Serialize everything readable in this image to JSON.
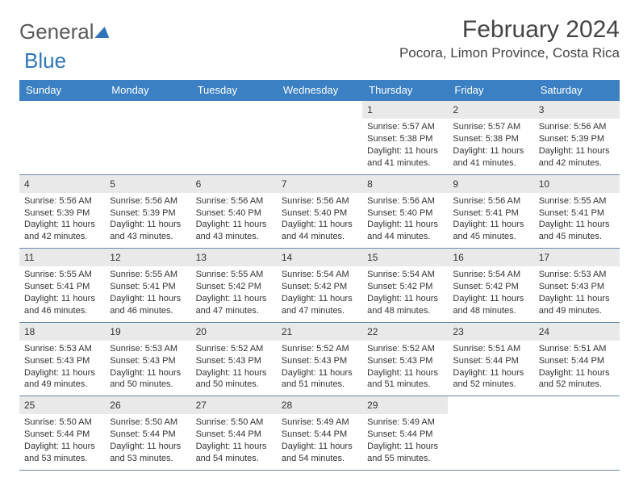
{
  "logo": {
    "word1": "General",
    "word2": "Blue"
  },
  "header": {
    "month": "February 2024",
    "location": "Pocora, Limon Province, Costa Rica"
  },
  "weekdays": [
    "Sunday",
    "Monday",
    "Tuesday",
    "Wednesday",
    "Thursday",
    "Friday",
    "Saturday"
  ],
  "colors": {
    "header_bg": "#3a80c3",
    "daynum_bg": "#e9e9e9",
    "rule": "#6b8aa8",
    "text": "#333333",
    "logo_gray": "#5a5a5a",
    "logo_blue": "#2f76b8"
  },
  "weeks": [
    [
      {
        "empty": true
      },
      {
        "empty": true
      },
      {
        "empty": true
      },
      {
        "empty": true
      },
      {
        "num": "1",
        "sunrise": "Sunrise: 5:57 AM",
        "sunset": "Sunset: 5:38 PM",
        "daylight": "Daylight: 11 hours and 41 minutes."
      },
      {
        "num": "2",
        "sunrise": "Sunrise: 5:57 AM",
        "sunset": "Sunset: 5:38 PM",
        "daylight": "Daylight: 11 hours and 41 minutes."
      },
      {
        "num": "3",
        "sunrise": "Sunrise: 5:56 AM",
        "sunset": "Sunset: 5:39 PM",
        "daylight": "Daylight: 11 hours and 42 minutes."
      }
    ],
    [
      {
        "num": "4",
        "sunrise": "Sunrise: 5:56 AM",
        "sunset": "Sunset: 5:39 PM",
        "daylight": "Daylight: 11 hours and 42 minutes."
      },
      {
        "num": "5",
        "sunrise": "Sunrise: 5:56 AM",
        "sunset": "Sunset: 5:39 PM",
        "daylight": "Daylight: 11 hours and 43 minutes."
      },
      {
        "num": "6",
        "sunrise": "Sunrise: 5:56 AM",
        "sunset": "Sunset: 5:40 PM",
        "daylight": "Daylight: 11 hours and 43 minutes."
      },
      {
        "num": "7",
        "sunrise": "Sunrise: 5:56 AM",
        "sunset": "Sunset: 5:40 PM",
        "daylight": "Daylight: 11 hours and 44 minutes."
      },
      {
        "num": "8",
        "sunrise": "Sunrise: 5:56 AM",
        "sunset": "Sunset: 5:40 PM",
        "daylight": "Daylight: 11 hours and 44 minutes."
      },
      {
        "num": "9",
        "sunrise": "Sunrise: 5:56 AM",
        "sunset": "Sunset: 5:41 PM",
        "daylight": "Daylight: 11 hours and 45 minutes."
      },
      {
        "num": "10",
        "sunrise": "Sunrise: 5:55 AM",
        "sunset": "Sunset: 5:41 PM",
        "daylight": "Daylight: 11 hours and 45 minutes."
      }
    ],
    [
      {
        "num": "11",
        "sunrise": "Sunrise: 5:55 AM",
        "sunset": "Sunset: 5:41 PM",
        "daylight": "Daylight: 11 hours and 46 minutes."
      },
      {
        "num": "12",
        "sunrise": "Sunrise: 5:55 AM",
        "sunset": "Sunset: 5:41 PM",
        "daylight": "Daylight: 11 hours and 46 minutes."
      },
      {
        "num": "13",
        "sunrise": "Sunrise: 5:55 AM",
        "sunset": "Sunset: 5:42 PM",
        "daylight": "Daylight: 11 hours and 47 minutes."
      },
      {
        "num": "14",
        "sunrise": "Sunrise: 5:54 AM",
        "sunset": "Sunset: 5:42 PM",
        "daylight": "Daylight: 11 hours and 47 minutes."
      },
      {
        "num": "15",
        "sunrise": "Sunrise: 5:54 AM",
        "sunset": "Sunset: 5:42 PM",
        "daylight": "Daylight: 11 hours and 48 minutes."
      },
      {
        "num": "16",
        "sunrise": "Sunrise: 5:54 AM",
        "sunset": "Sunset: 5:42 PM",
        "daylight": "Daylight: 11 hours and 48 minutes."
      },
      {
        "num": "17",
        "sunrise": "Sunrise: 5:53 AM",
        "sunset": "Sunset: 5:43 PM",
        "daylight": "Daylight: 11 hours and 49 minutes."
      }
    ],
    [
      {
        "num": "18",
        "sunrise": "Sunrise: 5:53 AM",
        "sunset": "Sunset: 5:43 PM",
        "daylight": "Daylight: 11 hours and 49 minutes."
      },
      {
        "num": "19",
        "sunrise": "Sunrise: 5:53 AM",
        "sunset": "Sunset: 5:43 PM",
        "daylight": "Daylight: 11 hours and 50 minutes."
      },
      {
        "num": "20",
        "sunrise": "Sunrise: 5:52 AM",
        "sunset": "Sunset: 5:43 PM",
        "daylight": "Daylight: 11 hours and 50 minutes."
      },
      {
        "num": "21",
        "sunrise": "Sunrise: 5:52 AM",
        "sunset": "Sunset: 5:43 PM",
        "daylight": "Daylight: 11 hours and 51 minutes."
      },
      {
        "num": "22",
        "sunrise": "Sunrise: 5:52 AM",
        "sunset": "Sunset: 5:43 PM",
        "daylight": "Daylight: 11 hours and 51 minutes."
      },
      {
        "num": "23",
        "sunrise": "Sunrise: 5:51 AM",
        "sunset": "Sunset: 5:44 PM",
        "daylight": "Daylight: 11 hours and 52 minutes."
      },
      {
        "num": "24",
        "sunrise": "Sunrise: 5:51 AM",
        "sunset": "Sunset: 5:44 PM",
        "daylight": "Daylight: 11 hours and 52 minutes."
      }
    ],
    [
      {
        "num": "25",
        "sunrise": "Sunrise: 5:50 AM",
        "sunset": "Sunset: 5:44 PM",
        "daylight": "Daylight: 11 hours and 53 minutes."
      },
      {
        "num": "26",
        "sunrise": "Sunrise: 5:50 AM",
        "sunset": "Sunset: 5:44 PM",
        "daylight": "Daylight: 11 hours and 53 minutes."
      },
      {
        "num": "27",
        "sunrise": "Sunrise: 5:50 AM",
        "sunset": "Sunset: 5:44 PM",
        "daylight": "Daylight: 11 hours and 54 minutes."
      },
      {
        "num": "28",
        "sunrise": "Sunrise: 5:49 AM",
        "sunset": "Sunset: 5:44 PM",
        "daylight": "Daylight: 11 hours and 54 minutes."
      },
      {
        "num": "29",
        "sunrise": "Sunrise: 5:49 AM",
        "sunset": "Sunset: 5:44 PM",
        "daylight": "Daylight: 11 hours and 55 minutes."
      },
      {
        "empty": true
      },
      {
        "empty": true
      }
    ]
  ]
}
